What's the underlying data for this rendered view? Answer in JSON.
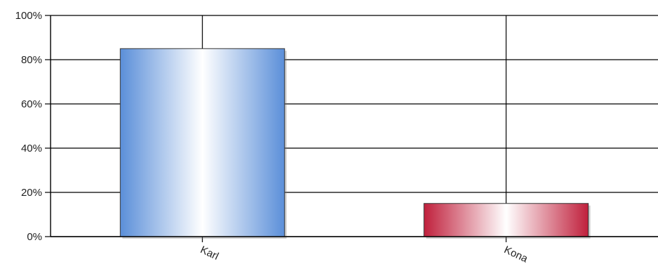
{
  "chart_data": {
    "type": "bar",
    "title": "",
    "xlabel": "",
    "ylabel": "",
    "categories": [
      "Karl",
      "Kona"
    ],
    "values": [
      0.85,
      0.15
    ],
    "ylim": [
      0,
      1
    ],
    "yticks": [
      0,
      0.2,
      0.4,
      0.6,
      0.8,
      1.0
    ],
    "ytick_labels": [
      "0%",
      "20%",
      "40%",
      "60%",
      "80%",
      "100%"
    ],
    "grid": true,
    "legend": "none",
    "colors": [
      "#5b8fd9",
      "#c0203c"
    ]
  }
}
